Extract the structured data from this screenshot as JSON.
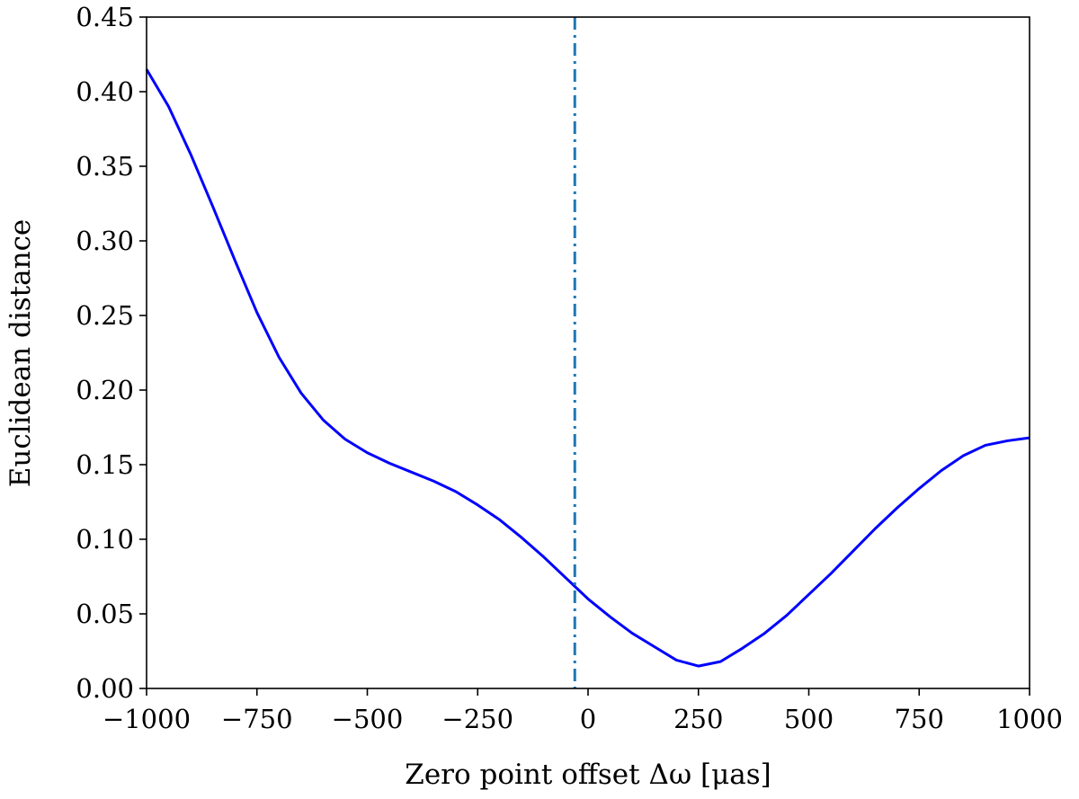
{
  "chart_data": {
    "type": "line",
    "xlabel": "Zero point offset Δω [μas]",
    "ylabel": "Euclidean distance",
    "xlim": [
      -1000,
      1000
    ],
    "ylim": [
      0,
      0.45
    ],
    "grid": false,
    "x_ticks": [
      -1000,
      -750,
      -500,
      -250,
      0,
      250,
      500,
      750,
      1000
    ],
    "x_tick_labels": [
      "−1000",
      "−750",
      "−500",
      "−250",
      "0",
      "250",
      "500",
      "750",
      "1000"
    ],
    "y_ticks": [
      0,
      0.05,
      0.1,
      0.15,
      0.2,
      0.25,
      0.3,
      0.35,
      0.4,
      0.45
    ],
    "y_tick_labels": [
      "0.00",
      "0.05",
      "0.10",
      "0.15",
      "0.20",
      "0.25",
      "0.30",
      "0.35",
      "0.40",
      "0.45"
    ],
    "series": [
      {
        "color": "#0000ff",
        "x": [
          -1000,
          -950,
          -900,
          -850,
          -800,
          -750,
          -700,
          -650,
          -600,
          -550,
          -500,
          -450,
          -400,
          -350,
          -300,
          -250,
          -200,
          -150,
          -100,
          -50,
          0,
          50,
          100,
          150,
          200,
          250,
          300,
          350,
          400,
          450,
          500,
          550,
          600,
          650,
          700,
          750,
          800,
          850,
          900,
          950,
          1000
        ],
        "y": [
          0.415,
          0.39,
          0.358,
          0.323,
          0.287,
          0.252,
          0.222,
          0.198,
          0.18,
          0.167,
          0.158,
          0.151,
          0.145,
          0.139,
          0.132,
          0.123,
          0.113,
          0.101,
          0.088,
          0.074,
          0.06,
          0.048,
          0.037,
          0.028,
          0.019,
          0.015,
          0.018,
          0.027,
          0.037,
          0.049,
          0.063,
          0.077,
          0.092,
          0.107,
          0.121,
          0.134,
          0.146,
          0.156,
          0.163,
          0.166,
          0.168
        ]
      }
    ],
    "vline": {
      "x": -30,
      "color": "#1f77b4",
      "style": "dashdot"
    }
  }
}
